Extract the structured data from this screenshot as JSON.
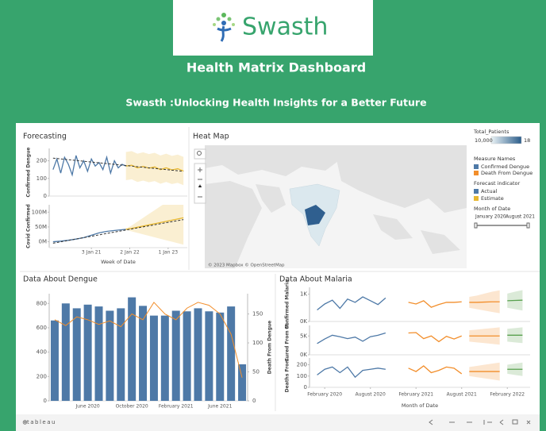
{
  "header": {
    "logo": "Swasth",
    "title": "Health Matrix Dashboard",
    "subtitle": "Swasth :Unlocking Health Insights for a Better Future"
  },
  "map": {
    "title": "Heat Map",
    "attribution": "© 2023 Mapbox © OpenStreetMap"
  },
  "legend": {
    "color_title": "Total_Patients",
    "color_min": "10,000",
    "color_max": "18",
    "measure_title": "Measure Names",
    "forecast_title": "Forecast indicator",
    "date_title": "Month of Date",
    "date_start": "January 2020",
    "date_end": "August 2021"
  },
  "footer": {
    "brand": "tableau"
  },
  "chart_data": [
    {
      "type": "line",
      "title": "Forecasting",
      "y_label": "Confirmed Dengue",
      "xlim": [
        2019.9,
        2023.5
      ],
      "ylim": [
        0,
        270
      ],
      "yticks": [
        0,
        100,
        200
      ],
      "series": [
        {
          "name": "Actual",
          "color": "#4e79a7",
          "x": [
            2020.0,
            2020.1,
            2020.2,
            2020.3,
            2020.4,
            2020.5,
            2020.6,
            2020.7,
            2020.8,
            2020.9,
            2021.0,
            2021.1,
            2021.2,
            2021.3,
            2021.4,
            2021.5,
            2021.6,
            2021.7,
            2021.8,
            2021.9
          ],
          "values": [
            150,
            210,
            130,
            220,
            180,
            120,
            230,
            160,
            200,
            140,
            210,
            170,
            190,
            150,
            220,
            130,
            200,
            160,
            180,
            170
          ]
        },
        {
          "name": "Estimate",
          "color": "#e8b830",
          "x": [
            2021.9,
            2022.05,
            2022.2,
            2022.35,
            2022.5,
            2022.65,
            2022.8,
            2022.95,
            2023.1,
            2023.25,
            2023.4
          ],
          "values": [
            170,
            175,
            160,
            168,
            158,
            165,
            150,
            160,
            148,
            155,
            142
          ],
          "lower": [
            90,
            95,
            80,
            88,
            78,
            85,
            70,
            80,
            68,
            75,
            62
          ],
          "upper": [
            250,
            255,
            240,
            248,
            238,
            245,
            230,
            240,
            228,
            235,
            222
          ]
        },
        {
          "color": "#333333",
          "dash": true,
          "x": [
            2020.0,
            2023.4
          ],
          "values": [
            215,
            140
          ]
        }
      ]
    },
    {
      "type": "line",
      "y_label": "Covid Confirmed",
      "x_label": "Week of Date",
      "xlim": [
        2019.9,
        2023.5
      ],
      "ylim": [
        -20000000,
        125000000
      ],
      "yticks": [
        {
          "value": 0,
          "label": "0M"
        },
        {
          "value": 50000000,
          "label": "50M"
        },
        {
          "value": 100000000,
          "label": "100M"
        }
      ],
      "xticks": [
        {
          "value": 2021.0,
          "label": "3 Jan 21"
        },
        {
          "value": 2022.0,
          "label": "2 Jan 22"
        },
        {
          "value": 2023.0,
          "label": "1 Jan 23"
        }
      ],
      "series": [
        {
          "color": "#4e79a7",
          "x": [
            2020.0,
            2020.2,
            2020.4,
            2020.6,
            2020.8,
            2021.0,
            2021.2,
            2021.4,
            2021.6,
            2021.9
          ],
          "values": [
            0,
            2000000,
            5000000,
            9000000,
            14000000,
            22000000,
            30000000,
            35000000,
            38000000,
            42000000
          ]
        },
        {
          "color": "#e8b830",
          "x": [
            2021.9,
            2022.05,
            2022.2,
            2022.35,
            2022.5,
            2022.65,
            2022.8,
            2022.95,
            2023.1,
            2023.25,
            2023.4
          ],
          "values": [
            42000000,
            45000000,
            49000000,
            53000000,
            57000000,
            61000000,
            65000000,
            69000000,
            73000000,
            77000000,
            81000000
          ],
          "lower": [
            40000000,
            35000000,
            30000000,
            25000000,
            20000000,
            15000000,
            10000000,
            5000000,
            0,
            -5000000,
            -10000000
          ],
          "upper": [
            44000000,
            55000000,
            68000000,
            81000000,
            94000000,
            107000000,
            120000000,
            133000000,
            146000000,
            159000000,
            172000000
          ]
        },
        {
          "color": "#333333",
          "dash": true,
          "x": [
            2020.0,
            2023.4
          ],
          "values": [
            -5000000,
            75000000
          ]
        }
      ]
    },
    {
      "type": "bar",
      "title": "Data About Dengue",
      "y2_label": "Death From Dengue",
      "categories": [
        null,
        null,
        null,
        "June 2020",
        null,
        null,
        null,
        "October 2020",
        null,
        null,
        null,
        "February 2021",
        null,
        null,
        null,
        "June 2021",
        null,
        null
      ],
      "ylim": [
        0,
        880
      ],
      "yticks": [
        0,
        200,
        400,
        600,
        800
      ],
      "y2lim": [
        0,
        185
      ],
      "y2ticks": [
        0,
        50,
        100,
        150
      ],
      "series": [
        {
          "name": "Confirmed Dengue",
          "color": "#4e79a7",
          "values": [
            660,
            800,
            760,
            790,
            775,
            740,
            760,
            850,
            780,
            700,
            700,
            740,
            735,
            760,
            735,
            725,
            775,
            300
          ]
        },
        {
          "name": "Death From Dengue",
          "color": "#f28e2b",
          "axis": "y2",
          "values": [
            140,
            130,
            145,
            140,
            132,
            138,
            128,
            150,
            140,
            170,
            150,
            140,
            160,
            170,
            165,
            150,
            115,
            40
          ]
        }
      ]
    },
    {
      "type": "line",
      "title": "Data About Malaria",
      "y_label": "Confirmed Malaria",
      "xlim": [
        -1,
        28
      ],
      "ylim": [
        0,
        1250
      ],
      "yticks": [
        {
          "value": 0,
          "label": "0K"
        },
        {
          "value": 1000,
          "label": "1K"
        }
      ],
      "series": [
        {
          "color": "#4e79a7",
          "x": [
            0,
            1,
            2,
            3,
            4,
            5,
            6,
            7,
            8,
            9
          ],
          "values": [
            420,
            640,
            780,
            480,
            820,
            700,
            900,
            760,
            620,
            860
          ]
        },
        {
          "color": "#f28e2b",
          "x": [
            12,
            13,
            14,
            15,
            16,
            17,
            18,
            19
          ],
          "values": [
            700,
            640,
            760,
            520,
            620,
            700,
            700,
            720
          ]
        },
        {
          "color": "#f28e2b",
          "x": [
            20,
            21,
            22,
            23,
            24
          ],
          "values": [
            700,
            700,
            710,
            720,
            720
          ],
          "lower": [
            500,
            450,
            400,
            350,
            300
          ],
          "upper": [
            900,
            950,
            1020,
            1090,
            1140
          ]
        },
        {
          "color": "#59a14f",
          "x": [
            25,
            26,
            27
          ],
          "values": [
            760,
            770,
            780
          ],
          "lower": [
            500,
            450,
            400
          ],
          "upper": [
            1020,
            1090,
            1150
          ]
        }
      ]
    },
    {
      "type": "line",
      "y_label": "Cured From M...",
      "xlim": [
        -1,
        28
      ],
      "ylim": [
        0,
        7800
      ],
      "yticks": [
        {
          "value": 0,
          "label": "0K"
        },
        {
          "value": 5000,
          "label": "5K"
        }
      ],
      "series": [
        {
          "color": "#4e79a7",
          "x": [
            0,
            1,
            2,
            3,
            4,
            5,
            6,
            7,
            8,
            9
          ],
          "values": [
            3000,
            4200,
            5200,
            4800,
            4300,
            4700,
            3600,
            4800,
            5200,
            5800
          ]
        },
        {
          "color": "#f28e2b",
          "x": [
            12,
            13,
            14,
            15,
            16,
            17,
            18,
            19
          ],
          "values": [
            5800,
            5900,
            4300,
            5000,
            3500,
            4900,
            4200,
            5000
          ]
        },
        {
          "color": "#f28e2b",
          "x": [
            20,
            21,
            22,
            23,
            24
          ],
          "values": [
            5000,
            5000,
            5000,
            5000,
            5000
          ],
          "lower": [
            3500,
            3300,
            3100,
            2900,
            2700
          ],
          "upper": [
            6500,
            6700,
            6900,
            7100,
            7300
          ]
        },
        {
          "color": "#59a14f",
          "x": [
            25,
            26,
            27
          ],
          "values": [
            5200,
            5200,
            5200
          ],
          "lower": [
            3500,
            3300,
            3100
          ],
          "upper": [
            6900,
            7100,
            7300
          ]
        }
      ]
    },
    {
      "type": "line",
      "y_label": "Deaths From...",
      "x_label": "Month of Date",
      "xlim": [
        -1,
        28
      ],
      "ylim": [
        0,
        260
      ],
      "yticks": [
        0,
        100,
        200
      ],
      "xticks": [
        {
          "value": 1,
          "label": "February 2020"
        },
        {
          "value": 7,
          "label": "August 2020"
        },
        {
          "value": 13,
          "label": "February 2021"
        },
        {
          "value": 19,
          "label": "August 2021"
        },
        {
          "value": 25,
          "label": "February 2022"
        }
      ],
      "series": [
        {
          "color": "#4e79a7",
          "x": [
            0,
            1,
            2,
            3,
            4,
            5,
            6,
            7,
            8,
            9
          ],
          "values": [
            110,
            160,
            180,
            130,
            180,
            90,
            150,
            160,
            170,
            160
          ]
        },
        {
          "color": "#f28e2b",
          "x": [
            12,
            13,
            14,
            15,
            16,
            17,
            18,
            19
          ],
          "values": [
            170,
            140,
            190,
            130,
            150,
            180,
            170,
            120
          ]
        },
        {
          "color": "#f28e2b",
          "x": [
            20,
            21,
            22,
            23,
            24
          ],
          "values": [
            140,
            140,
            140,
            140,
            140
          ],
          "lower": [
            100,
            90,
            80,
            70,
            60
          ],
          "upper": [
            180,
            190,
            200,
            210,
            220
          ]
        },
        {
          "color": "#59a14f",
          "x": [
            25,
            26,
            27
          ],
          "values": [
            160,
            160,
            160
          ],
          "lower": [
            120,
            110,
            100
          ],
          "upper": [
            200,
            210,
            220
          ]
        }
      ]
    }
  ]
}
